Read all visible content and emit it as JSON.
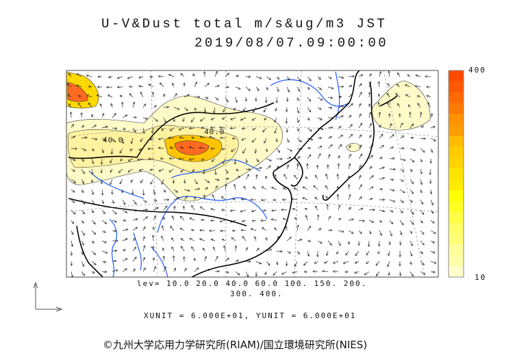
{
  "title": {
    "line1": "U-V&Dust total m/s&ug/m3 JST",
    "line2": "2019/08/07.09:00:00"
  },
  "levels": {
    "line1": "lev= 10.0 20.0 40.0 60.0 100. 150. 200.",
    "line2": "300. 400."
  },
  "units": "XUNIT = 6.000E+01, YUNIT = 6.000E+01",
  "contour_labels": [
    "40.0",
    "40.0"
  ],
  "colorbar": {
    "max_label": "400",
    "min_label": "10",
    "colors": [
      "#ff4a00",
      "#ff5800",
      "#ff6a00",
      "#ff7a00",
      "#ff9200",
      "#ff9c00",
      "#ffbb00",
      "#ffcc00",
      "#ffd400",
      "#ffe400",
      "#ffea00",
      "#ffff00",
      "#ffff22",
      "#ffff44",
      "#ffff66",
      "#ffff77",
      "#ffff99",
      "#ffffaa",
      "#ffffcc"
    ]
  },
  "credit": "©九州大学応用力学研究所(RIAM)/国立環境研究所(NIES)",
  "colors": {
    "coast": "#000000",
    "river": "#1e5aff",
    "dust_low": "#ffffcc"
  }
}
